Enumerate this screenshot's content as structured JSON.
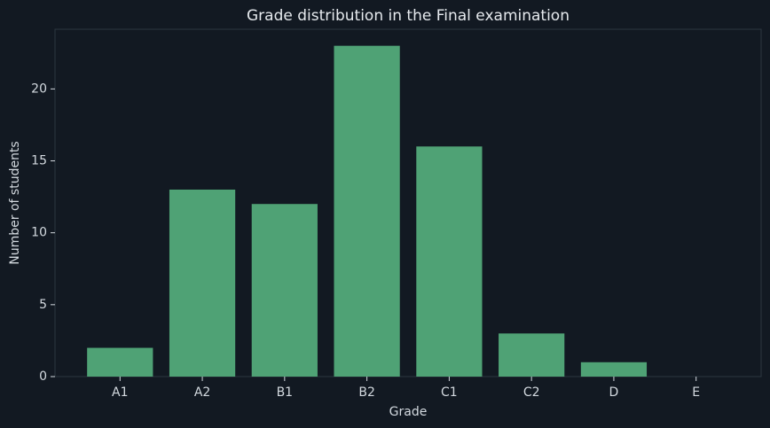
{
  "chart_data": {
    "type": "bar",
    "title": "Grade distribution in the Final examination",
    "x_label": "Grade",
    "y_label": "Number of students",
    "categories": [
      "A1",
      "A2",
      "B1",
      "B2",
      "C1",
      "C2",
      "D",
      "E"
    ],
    "values": [
      2,
      13,
      12,
      23,
      16,
      3,
      1,
      0
    ],
    "color": "#4fa275",
    "ylim": [
      0,
      24.15
    ],
    "yticks": [
      0,
      5,
      10,
      15,
      20
    ],
    "grid": false
  }
}
